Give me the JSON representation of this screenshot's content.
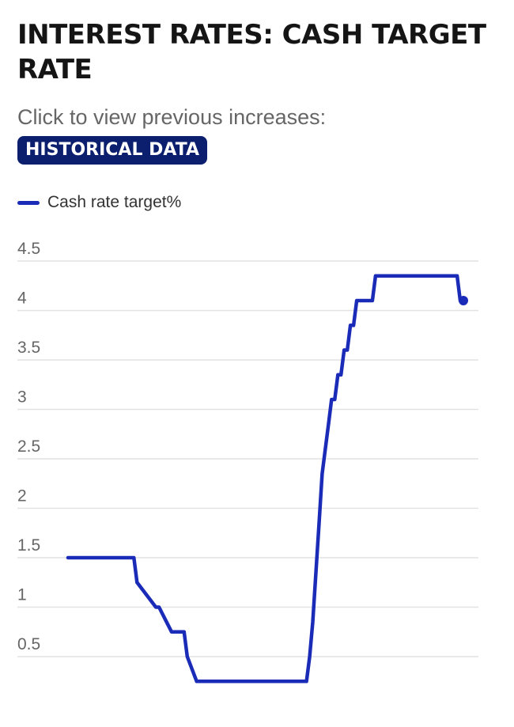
{
  "header": {
    "title": "INTEREST RATES: CASH TARGET RATE",
    "subtitle": "Click to view previous increases:",
    "button_label": "HISTORICAL DATA"
  },
  "colors": {
    "accent": "#0b1f6e",
    "line": "#1a2bb8",
    "grid": "#e2e2e2"
  },
  "chart_data": {
    "type": "line",
    "title": "",
    "xlabel": "",
    "ylabel": "",
    "legend": "top-left",
    "grid": true,
    "yticks": [
      "0.5",
      "1",
      "1.5",
      "2",
      "2.5",
      "3",
      "3.5",
      "4",
      "4.5"
    ],
    "ylim": [
      0.3,
      4.65
    ],
    "series": [
      {
        "name": "Cash rate target%",
        "x": [
          0,
          10,
          21,
          22,
          28,
          29,
          33,
          34,
          37,
          38,
          41,
          42,
          43,
          44,
          45,
          46,
          47,
          48,
          49,
          50,
          51,
          52,
          53,
          54,
          55,
          56,
          57,
          58,
          59,
          60,
          61,
          62,
          63,
          64,
          65,
          66,
          67,
          68,
          69,
          70,
          71,
          72,
          73,
          74,
          75,
          76,
          77,
          78,
          79,
          80,
          81,
          82,
          83,
          84,
          85,
          86,
          87,
          88,
          89,
          90,
          91,
          92,
          93,
          94,
          95,
          96,
          97,
          98,
          99,
          100,
          101,
          102,
          103,
          104,
          105,
          106,
          107,
          108,
          109,
          110,
          111,
          112,
          113,
          114,
          115,
          116,
          117,
          118,
          119,
          120,
          121,
          122,
          123,
          124,
          125,
          126
        ],
        "values": [
          1.5,
          1.5,
          1.5,
          1.25,
          1.0,
          1.0,
          0.75,
          0.75,
          0.75,
          0.5,
          0.25,
          0.25,
          0.25,
          0.25,
          0.25,
          0.25,
          0.25,
          0.25,
          0.25,
          0.25,
          0.25,
          0.25,
          0.25,
          0.25,
          0.25,
          0.25,
          0.25,
          0.25,
          0.25,
          0.25,
          0.25,
          0.25,
          0.25,
          0.25,
          0.25,
          0.25,
          0.25,
          0.25,
          0.25,
          0.25,
          0.25,
          0.25,
          0.25,
          0.25,
          0.25,
          0.25,
          0.5,
          0.85,
          1.35,
          1.85,
          2.35,
          2.6,
          2.85,
          3.1,
          3.1,
          3.35,
          3.35,
          3.6,
          3.6,
          3.85,
          3.85,
          4.1,
          4.1,
          4.1,
          4.1,
          4.1,
          4.1,
          4.35,
          4.35,
          4.35,
          4.35,
          4.35,
          4.35,
          4.35,
          4.35,
          4.35,
          4.35,
          4.35,
          4.35,
          4.35,
          4.35,
          4.35,
          4.35,
          4.35,
          4.35,
          4.35,
          4.35,
          4.35,
          4.35,
          4.35,
          4.35,
          4.35,
          4.35,
          4.35,
          4.1,
          4.1
        ]
      }
    ]
  }
}
